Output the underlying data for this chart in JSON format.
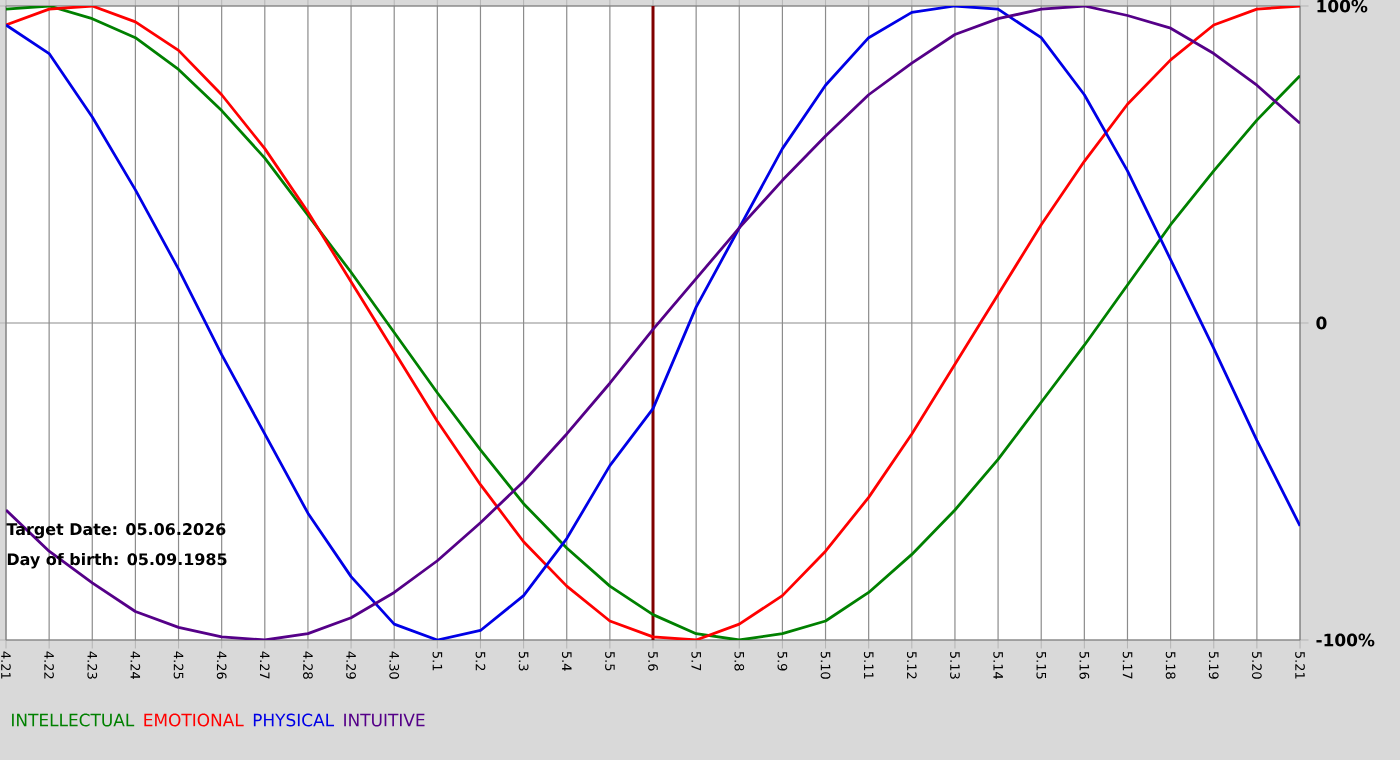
{
  "chart_data": {
    "type": "line",
    "categories": [
      "4.21",
      "4.22",
      "4.23",
      "4.24",
      "4.25",
      "4.26",
      "4.27",
      "4.28",
      "4.29",
      "4.30",
      "5.1",
      "5.2",
      "5.3",
      "5.4",
      "5.5",
      "5.6",
      "5.7",
      "5.8",
      "5.9",
      "5.10",
      "5.11",
      "5.12",
      "5.13",
      "5.14",
      "5.15",
      "5.16",
      "5.17",
      "5.18",
      "5.19",
      "5.20",
      "5.21"
    ],
    "series": [
      {
        "name": "INTELLECTUAL",
        "color": "#008000",
        "values": [
          99,
          100,
          96,
          90,
          80,
          67,
          52,
          34,
          16,
          -3,
          -22,
          -40,
          -57,
          -71,
          -83,
          -92,
          -98,
          -100,
          -98,
          -94,
          -85,
          -73,
          -59,
          -43,
          -25,
          -7,
          12,
          31,
          48,
          64,
          78
        ]
      },
      {
        "name": "EMOTIONAL",
        "color": "#ff0000",
        "values": [
          94,
          99,
          100,
          95,
          86,
          72,
          55,
          35,
          13,
          -9,
          -31,
          -51,
          -69,
          -83,
          -94,
          -99,
          -100,
          -95,
          -86,
          -72,
          -55,
          -35,
          -13,
          9,
          31,
          51,
          69,
          83,
          94,
          99,
          100
        ]
      },
      {
        "name": "PHYSICAL",
        "color": "#0000e6",
        "values": [
          94,
          85,
          65,
          42,
          17,
          -10,
          -35,
          -60,
          -80,
          -95,
          -100,
          -97,
          -86,
          -68,
          -45,
          -27,
          5,
          30,
          55,
          75,
          90,
          98,
          100,
          99,
          90,
          72,
          48,
          20,
          -8,
          -37,
          -64
        ]
      },
      {
        "name": "INTUITIVE",
        "color": "#550088",
        "values": [
          -59,
          -72,
          -82,
          -91,
          -96,
          -99,
          -100,
          -98,
          -93,
          -85,
          -75,
          -63,
          -50,
          -35,
          -19,
          -2,
          14,
          30,
          45,
          59,
          72,
          82,
          91,
          96,
          99,
          100,
          97,
          93,
          85,
          75,
          63
        ]
      }
    ],
    "ylim": [
      -100,
      100
    ],
    "yticks": [
      {
        "value": -100,
        "label": "-100%"
      },
      0,
      {
        "value": 100,
        "label": "100%"
      }
    ],
    "grid": true,
    "legend": "bottom",
    "ref_lines": [
      {
        "axis": "x",
        "value": "5.6",
        "color": "#800000"
      }
    ],
    "annotations": [
      "Target Date: 05.06.2026",
      "Day of birth: 05.09.1985"
    ]
  }
}
